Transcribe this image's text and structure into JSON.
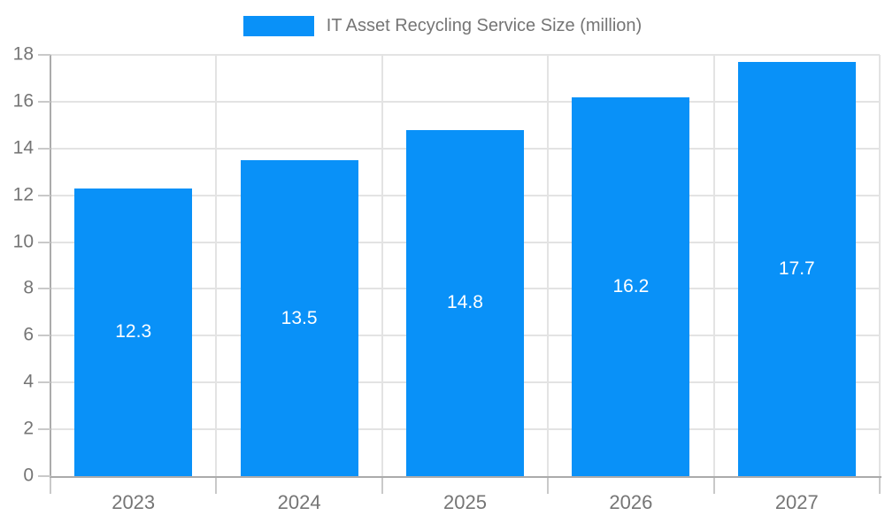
{
  "colors": {
    "background": "#ffffff",
    "bar": "#0991f8",
    "grid": "#e3e3e3",
    "axis_line": "#ababab",
    "tick": "#c9c9c9",
    "axis_text": "#757575",
    "data_label": "#ffffff"
  },
  "legend": {
    "entries": [
      {
        "label": "IT Asset Recycling Service Size (million)",
        "color": "#0991f8"
      }
    ]
  },
  "chart_data": {
    "type": "bar",
    "title": "IT Asset Recycling Service Size (million)",
    "categories": [
      "2023",
      "2024",
      "2025",
      "2026",
      "2027"
    ],
    "series": [
      {
        "name": "IT Asset Recycling Service Size (million)",
        "values": [
          12.3,
          13.5,
          14.8,
          16.2,
          17.7
        ]
      }
    ],
    "value_labels": [
      "12.3",
      "13.5",
      "14.8",
      "16.2",
      "17.7"
    ],
    "xlabel": "",
    "ylabel": "",
    "ylim": [
      0,
      18
    ],
    "yticks": [
      0,
      2,
      4,
      6,
      8,
      10,
      12,
      14,
      16,
      18
    ],
    "grid": true,
    "legend_position": "top",
    "data_label_position": "inside-center"
  }
}
